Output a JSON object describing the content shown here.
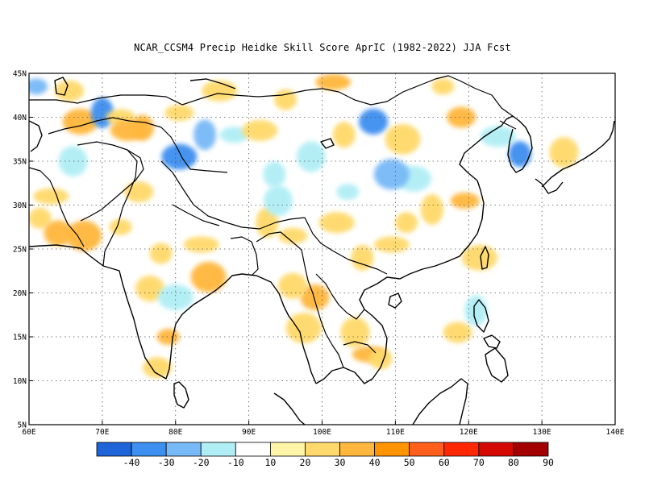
{
  "title": "NCAR_CCSM4 Precip Heidke Skill Score AprIC (1982-2022) JJA Fcst",
  "map": {
    "lon_range": [
      60,
      140
    ],
    "lat_range": [
      5,
      45
    ],
    "lon_ticks": [
      {
        "v": 60,
        "label": "60E"
      },
      {
        "v": 70,
        "label": "70E"
      },
      {
        "v": 80,
        "label": "80E"
      },
      {
        "v": 90,
        "label": "90E"
      },
      {
        "v": 100,
        "label": "100E"
      },
      {
        "v": 110,
        "label": "110E"
      },
      {
        "v": 120,
        "label": "120E"
      },
      {
        "v": 130,
        "label": "130E"
      },
      {
        "v": 140,
        "label": "140E"
      }
    ],
    "lat_ticks": [
      {
        "v": 5,
        "label": "5N"
      },
      {
        "v": 10,
        "label": "10N"
      },
      {
        "v": 15,
        "label": "15N"
      },
      {
        "v": 20,
        "label": "20N"
      },
      {
        "v": 25,
        "label": "25N"
      },
      {
        "v": 30,
        "label": "30N"
      },
      {
        "v": 35,
        "label": "35N"
      },
      {
        "v": 40,
        "label": "40N"
      },
      {
        "v": 45,
        "label": "45N"
      }
    ],
    "grid": "dotted"
  },
  "colorbar": {
    "colors": [
      "#1f64d8",
      "#3d8ff0",
      "#78b9f7",
      "#b0eef5",
      "#ffffff",
      "#fff5a8",
      "#ffd96b",
      "#ffb73d",
      "#ff9400",
      "#ff5f1a",
      "#ff2800",
      "#d40a00",
      "#a30000"
    ],
    "labels": [
      "-40",
      "-30",
      "-20",
      "-10",
      "10",
      "20",
      "30",
      "40",
      "50",
      "60",
      "70",
      "80",
      "90"
    ]
  },
  "chart_data": {
    "type": "heatmap",
    "title": "NCAR_CCSM4 Precip Heidke Skill Score AprIC (1982-2022) JJA Fcst",
    "xlabel": "",
    "ylabel": "",
    "xlim": [
      60,
      140
    ],
    "ylim": [
      5,
      45
    ],
    "color_levels": [
      -40,
      -30,
      -20,
      -10,
      10,
      20,
      30,
      40,
      50,
      60,
      70,
      80,
      90
    ],
    "patches": [
      {
        "lon": 61.0,
        "lat": 43.5,
        "value": -20
      },
      {
        "lon": 65.5,
        "lat": 43.0,
        "value": 20
      },
      {
        "lon": 67.0,
        "lat": 39.5,
        "value": 30
      },
      {
        "lon": 70.0,
        "lat": 40.5,
        "value": -30
      },
      {
        "lon": 72.5,
        "lat": 40.0,
        "value": 20
      },
      {
        "lon": 73.5,
        "lat": 38.5,
        "value": 30
      },
      {
        "lon": 75.5,
        "lat": 38.8,
        "value": 30
      },
      {
        "lon": 66.0,
        "lat": 35.0,
        "value": -10
      },
      {
        "lon": 63.0,
        "lat": 31.0,
        "value": 20
      },
      {
        "lon": 61.5,
        "lat": 28.5,
        "value": 20
      },
      {
        "lon": 64.0,
        "lat": 26.8,
        "value": 30
      },
      {
        "lon": 67.5,
        "lat": 26.5,
        "value": 30
      },
      {
        "lon": 72.5,
        "lat": 27.5,
        "value": 20
      },
      {
        "lon": 75.0,
        "lat": 31.5,
        "value": 20
      },
      {
        "lon": 80.5,
        "lat": 35.5,
        "value": -30
      },
      {
        "lon": 84.0,
        "lat": 38.0,
        "value": -20
      },
      {
        "lon": 80.5,
        "lat": 40.5,
        "value": 20
      },
      {
        "lon": 86.0,
        "lat": 43.0,
        "value": 20
      },
      {
        "lon": 93.5,
        "lat": 33.5,
        "value": -10
      },
      {
        "lon": 98.5,
        "lat": 35.5,
        "value": -10
      },
      {
        "lon": 101.5,
        "lat": 44.0,
        "value": 30
      },
      {
        "lon": 95.0,
        "lat": 42.0,
        "value": 20
      },
      {
        "lon": 107.0,
        "lat": 39.5,
        "value": -30
      },
      {
        "lon": 111.0,
        "lat": 37.5,
        "value": 20
      },
      {
        "lon": 116.5,
        "lat": 43.5,
        "value": 20
      },
      {
        "lon": 119.0,
        "lat": 40.0,
        "value": 30
      },
      {
        "lon": 112.5,
        "lat": 33.0,
        "value": -10
      },
      {
        "lon": 115.0,
        "lat": 29.5,
        "value": 20
      },
      {
        "lon": 119.5,
        "lat": 30.5,
        "value": 30
      },
      {
        "lon": 124.0,
        "lat": 37.8,
        "value": -10
      },
      {
        "lon": 127.0,
        "lat": 35.8,
        "value": -30
      },
      {
        "lon": 133.0,
        "lat": 36.0,
        "value": 20
      },
      {
        "lon": 83.5,
        "lat": 25.5,
        "value": 20
      },
      {
        "lon": 78.0,
        "lat": 24.5,
        "value": 20
      },
      {
        "lon": 76.5,
        "lat": 20.5,
        "value": 20
      },
      {
        "lon": 84.5,
        "lat": 21.8,
        "value": 30
      },
      {
        "lon": 79.0,
        "lat": 15.0,
        "value": 30
      },
      {
        "lon": 77.5,
        "lat": 11.5,
        "value": 20
      },
      {
        "lon": 80.0,
        "lat": 19.5,
        "value": -10
      },
      {
        "lon": 92.5,
        "lat": 28.0,
        "value": 20
      },
      {
        "lon": 96.0,
        "lat": 26.5,
        "value": 20
      },
      {
        "lon": 102.0,
        "lat": 28.0,
        "value": 20
      },
      {
        "lon": 105.5,
        "lat": 24.0,
        "value": 20
      },
      {
        "lon": 104.5,
        "lat": 15.5,
        "value": 20
      },
      {
        "lon": 106.5,
        "lat": 13.0,
        "value": 30
      },
      {
        "lon": 108.0,
        "lat": 12.5,
        "value": 20
      },
      {
        "lon": 99.0,
        "lat": 19.5,
        "value": 30
      },
      {
        "lon": 97.5,
        "lat": 16.0,
        "value": 20
      },
      {
        "lon": 103.5,
        "lat": 31.5,
        "value": -10
      },
      {
        "lon": 118.5,
        "lat": 15.5,
        "value": 20
      },
      {
        "lon": 121.5,
        "lat": 24.0,
        "value": 20
      },
      {
        "lon": 121.0,
        "lat": 18.0,
        "value": -10
      },
      {
        "lon": 88.0,
        "lat": 38.0,
        "value": -10
      },
      {
        "lon": 91.5,
        "lat": 38.5,
        "value": 20
      },
      {
        "lon": 103.0,
        "lat": 38.0,
        "value": 20
      },
      {
        "lon": 94.0,
        "lat": 30.5,
        "value": -10
      },
      {
        "lon": 109.5,
        "lat": 25.5,
        "value": 20
      },
      {
        "lon": 111.5,
        "lat": 28.0,
        "value": 20
      },
      {
        "lon": 96.0,
        "lat": 20.8,
        "value": 20
      },
      {
        "lon": 109.5,
        "lat": 33.5,
        "value": -20
      }
    ]
  }
}
